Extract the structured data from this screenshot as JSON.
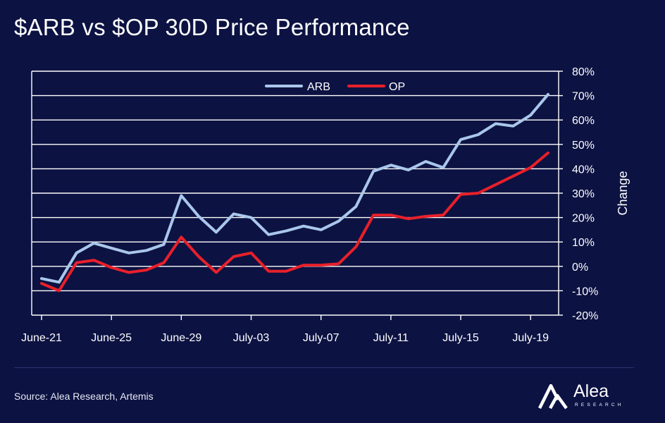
{
  "title": "$ARB vs $OP 30D Price Performance",
  "source": "Source: Alea Research, Artemis",
  "brand": {
    "name": "Alea",
    "sub": "RESEARCH"
  },
  "colors": {
    "background": "#0c1242",
    "grid": "#ffffff",
    "arb": "#a9c7ea",
    "op": "#e8202a"
  },
  "chart_data": {
    "type": "line",
    "ylabel": "Change",
    "ylim": [
      -20,
      80
    ],
    "yticks": [
      -20,
      -10,
      0,
      10,
      20,
      30,
      40,
      50,
      60,
      70,
      80
    ],
    "ytick_labels": [
      "-20%",
      "-10%",
      "0%",
      "10%",
      "20%",
      "30%",
      "40%",
      "50%",
      "60%",
      "70%",
      "80%"
    ],
    "x_tick_labels": [
      "June-21",
      "June-25",
      "June-29",
      "July-03",
      "July-07",
      "July-11",
      "July-15",
      "July-19"
    ],
    "legend_position": "top",
    "grid": true,
    "x": [
      "June-21",
      "June-22",
      "June-23",
      "June-24",
      "June-25",
      "June-26",
      "June-27",
      "June-28",
      "June-29",
      "June-30",
      "July-01",
      "July-02",
      "July-03",
      "July-04",
      "July-05",
      "July-06",
      "July-07",
      "July-08",
      "July-09",
      "July-10",
      "July-11",
      "July-12",
      "July-13",
      "July-14",
      "July-15",
      "July-16",
      "July-17",
      "July-18",
      "July-19",
      "July-20"
    ],
    "series": [
      {
        "name": "ARB",
        "values": [
          -5,
          -6.5,
          5.5,
          9.5,
          7.5,
          5.5,
          6.5,
          9,
          29,
          20.5,
          14,
          21.5,
          20,
          13,
          14.5,
          16.5,
          15,
          18.5,
          24.5,
          39,
          41.5,
          39.5,
          43,
          40.5,
          52,
          54,
          58.5,
          57.5,
          62,
          70.5
        ]
      },
      {
        "name": "OP",
        "values": [
          -7,
          -10,
          1.5,
          2.5,
          -0.5,
          -2.5,
          -1.5,
          1.5,
          12,
          4,
          -2.5,
          4,
          5.5,
          -2,
          -2,
          0.5,
          0.5,
          1,
          8,
          21,
          21,
          19.5,
          20.5,
          21,
          29.5,
          30,
          33.5,
          37,
          40.5,
          46.5
        ]
      }
    ]
  }
}
